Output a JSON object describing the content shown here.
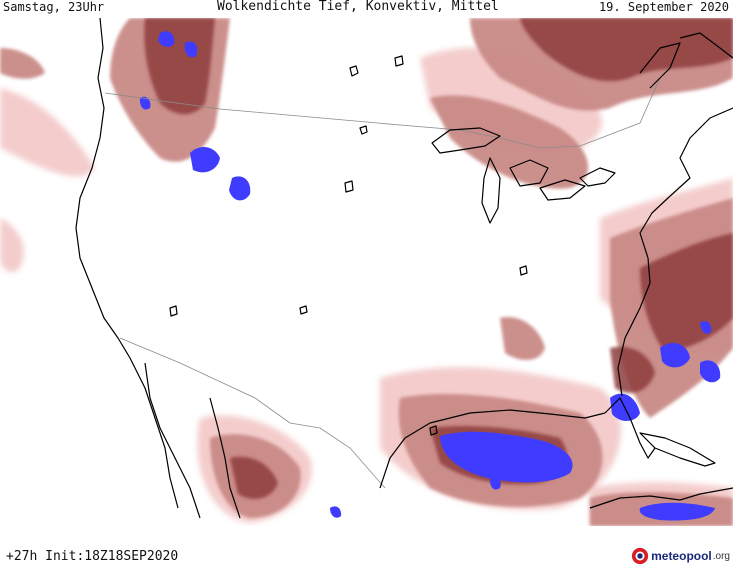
{
  "header": {
    "left": "Samstag, 23Uhr",
    "center": "Wolkendichte  Tief, Konvektiv, Mittel",
    "right": "19. September 2020"
  },
  "footer": {
    "run_info": "+27h Init:18Z18SEP2020",
    "brand": "meteopool",
    "brand_tld": ".org"
  },
  "colors": {
    "cloud_light": "#f3c7c7",
    "cloud_mid": "#c98a86",
    "cloud_dark": "#8e3e3c",
    "cloud_darkest": "#6d2626",
    "convective": "#3f3cff",
    "coastline": "#000000",
    "border": "#8a8a8a",
    "brand_red": "#d61f26",
    "brand_blue": "#1a2a7a"
  },
  "map": {
    "type": "weather-forecast-map",
    "parameter_icons": [
      "cloud-cover-low",
      "cloud-cover-convective",
      "cloud-cover-mid"
    ]
  }
}
